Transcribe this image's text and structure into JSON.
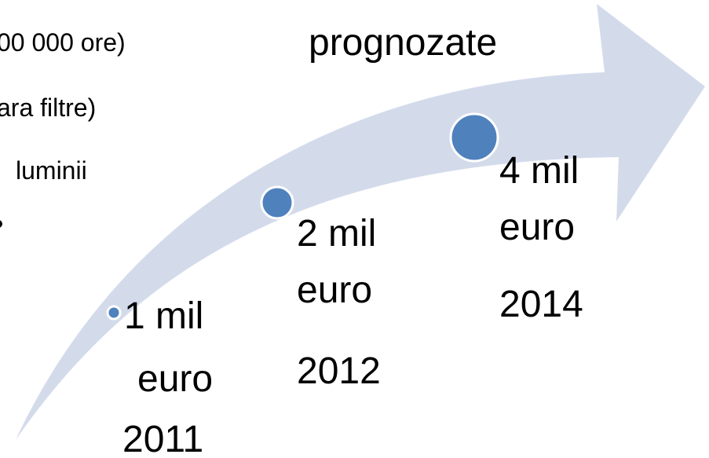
{
  "left_text": [
    "00 000 ore)",
    "ara filtre)",
    "luminii"
  ],
  "title": "prognozate",
  "nodes": [
    {
      "amount": "1 mil",
      "unit": "euro",
      "year": "2011"
    },
    {
      "amount": "2 mil",
      "unit": "euro",
      "year": "2012"
    },
    {
      "amount": "4 mil",
      "unit": "euro",
      "year": "2014"
    }
  ]
}
